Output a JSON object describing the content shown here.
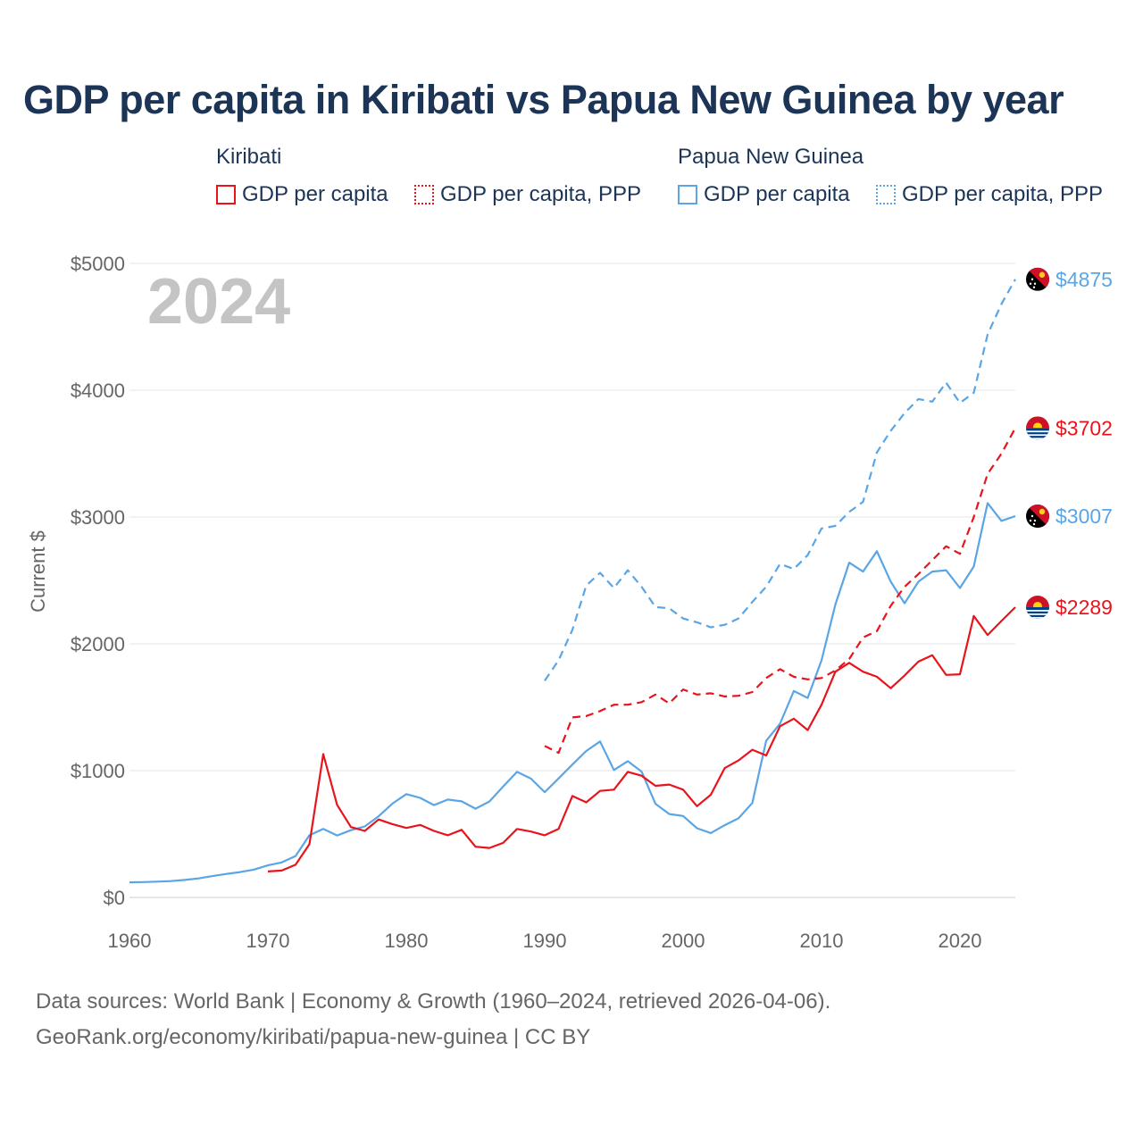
{
  "title": "GDP per capita in Kiribati vs Papua New Guinea by year",
  "legend": {
    "groups": [
      {
        "country": "Kiribati",
        "items": [
          "GDP per capita",
          "GDP per capita, PPP"
        ],
        "color": "#e8141c"
      },
      {
        "country": "Papua New Guinea",
        "items": [
          "GDP per capita",
          "GDP per capita, PPP"
        ],
        "color": "#5aa5e5"
      }
    ]
  },
  "year_watermark": "2024",
  "footer": {
    "line1": "Data sources: World Bank | Economy & Growth (1960–2024, retrieved 2026-04-06).",
    "line2": "GeoRank.org/economy/kiribati/papua-new-guinea | CC BY"
  },
  "chart_data": {
    "type": "line",
    "title": "GDP per capita in Kiribati vs Papua New Guinea by year",
    "xlabel": "",
    "ylabel": "Current $",
    "xlim": [
      1960,
      2024
    ],
    "ylim": [
      0,
      5000
    ],
    "xticks": [
      1960,
      1970,
      1980,
      1990,
      2000,
      2010,
      2020
    ],
    "yticks": [
      0,
      1000,
      2000,
      3000,
      4000,
      5000
    ],
    "ytick_labels": [
      "$0",
      "$1000",
      "$2000",
      "$3000",
      "$4000",
      "$5000"
    ],
    "grid": true,
    "series": [
      {
        "name": "Papua New Guinea — GDP per capita",
        "color": "#5aa5e5",
        "dash": false,
        "end_label": "$3007",
        "x": [
          1960,
          1961,
          1962,
          1963,
          1964,
          1965,
          1966,
          1967,
          1968,
          1969,
          1970,
          1971,
          1972,
          1973,
          1974,
          1975,
          1976,
          1977,
          1978,
          1979,
          1980,
          1981,
          1982,
          1983,
          1984,
          1985,
          1986,
          1987,
          1988,
          1989,
          1990,
          1991,
          1992,
          1993,
          1994,
          1995,
          1996,
          1997,
          1998,
          1999,
          2000,
          2001,
          2002,
          2003,
          2004,
          2005,
          2006,
          2007,
          2008,
          2009,
          2010,
          2011,
          2012,
          2013,
          2014,
          2015,
          2016,
          2017,
          2018,
          2019,
          2020,
          2021,
          2022,
          2023,
          2024
        ],
        "values": [
          119,
          121,
          125,
          129,
          138,
          150,
          168,
          185,
          200,
          220,
          253,
          276,
          327,
          490,
          540,
          489,
          530,
          560,
          640,
          740,
          815,
          785,
          728,
          772,
          758,
          700,
          756,
          875,
          990,
          937,
          830,
          938,
          1048,
          1155,
          1230,
          1005,
          1075,
          992,
          739,
          658,
          642,
          546,
          508,
          570,
          624,
          745,
          1235,
          1370,
          1628,
          1573,
          1870,
          2310,
          2640,
          2570,
          2730,
          2490,
          2320,
          2490,
          2570,
          2580,
          2440,
          2610,
          3110,
          2970,
          3007
        ]
      },
      {
        "name": "Papua New Guinea — GDP per capita, PPP",
        "color": "#5aa5e5",
        "dash": true,
        "end_label": "$4875",
        "x": [
          1990,
          1991,
          1992,
          1993,
          1994,
          1995,
          1996,
          1997,
          1998,
          1999,
          2000,
          2001,
          2002,
          2003,
          2004,
          2005,
          2006,
          2007,
          2008,
          2009,
          2010,
          2011,
          2012,
          2013,
          2014,
          2015,
          2016,
          2017,
          2018,
          2019,
          2020,
          2021,
          2022,
          2023,
          2024
        ],
        "values": [
          1710,
          1870,
          2110,
          2460,
          2560,
          2440,
          2580,
          2450,
          2290,
          2280,
          2200,
          2170,
          2130,
          2150,
          2200,
          2330,
          2450,
          2630,
          2590,
          2700,
          2910,
          2930,
          3040,
          3120,
          3510,
          3680,
          3820,
          3930,
          3910,
          4060,
          3900,
          3980,
          4440,
          4680,
          4875
        ]
      },
      {
        "name": "Kiribati — GDP per capita",
        "color": "#e8141c",
        "dash": false,
        "end_label": "$2289",
        "x": [
          1970,
          1971,
          1972,
          1973,
          1974,
          1975,
          1976,
          1977,
          1978,
          1979,
          1980,
          1981,
          1982,
          1983,
          1984,
          1985,
          1986,
          1987,
          1988,
          1989,
          1990,
          1991,
          1992,
          1993,
          1994,
          1995,
          1996,
          1997,
          1998,
          1999,
          2000,
          2001,
          2002,
          2003,
          2004,
          2005,
          2006,
          2007,
          2008,
          2009,
          2010,
          2011,
          2012,
          2013,
          2014,
          2015,
          2016,
          2017,
          2018,
          2019,
          2020,
          2021,
          2022,
          2023,
          2024
        ],
        "values": [
          205,
          212,
          258,
          420,
          1130,
          730,
          555,
          525,
          615,
          578,
          548,
          572,
          525,
          490,
          533,
          400,
          390,
          430,
          540,
          520,
          490,
          540,
          800,
          750,
          840,
          850,
          990,
          960,
          880,
          890,
          850,
          720,
          810,
          1020,
          1080,
          1165,
          1120,
          1350,
          1410,
          1320,
          1520,
          1780,
          1850,
          1780,
          1740,
          1650,
          1750,
          1860,
          1910,
          1755,
          1760,
          2220,
          2070,
          2180,
          2289
        ]
      },
      {
        "name": "Kiribati — GDP per capita, PPP",
        "color": "#e8141c",
        "dash": true,
        "end_label": "$3702",
        "x": [
          1990,
          1991,
          1992,
          1993,
          1994,
          1995,
          1996,
          1997,
          1998,
          1999,
          2000,
          2001,
          2002,
          2003,
          2004,
          2005,
          2006,
          2007,
          2008,
          2009,
          2010,
          2011,
          2012,
          2013,
          2014,
          2015,
          2016,
          2017,
          2018,
          2019,
          2020,
          2021,
          2022,
          2023,
          2024
        ],
        "values": [
          1195,
          1140,
          1420,
          1430,
          1470,
          1520,
          1520,
          1540,
          1600,
          1530,
          1640,
          1600,
          1610,
          1585,
          1590,
          1620,
          1730,
          1800,
          1740,
          1720,
          1730,
          1790,
          1880,
          2050,
          2100,
          2300,
          2450,
          2550,
          2660,
          2770,
          2710,
          3000,
          3340,
          3500,
          3702
        ]
      }
    ]
  }
}
